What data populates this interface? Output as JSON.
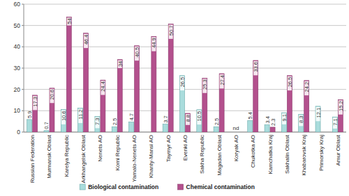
{
  "chart_data": {
    "type": "bar",
    "categories": [
      "Russian Federation",
      "Murmansk Oblast",
      "Karelya Republic",
      "Arkhangelsk Oblast",
      "Nenets AO",
      "Komi Republic",
      "Yamalo-Nenets AO",
      "Khanty-Mansi AO",
      "Taymyr AO",
      "Evenki AO",
      "Sakha Republic",
      "Magadan Oblast",
      "Koryak AO",
      "Chukotka AO",
      "Kamchatka Kraj",
      "Sakhalin Oblast",
      "Khabarovsk Kraj",
      "Primorsky Kraj",
      "Amur Oblast"
    ],
    "series": [
      {
        "name": "Biological contamination",
        "color": "#a9dcdc",
        "values": [
          5.9,
          0.7,
          10.6,
          11.2,
          7.3,
          2.5,
          4.7,
          null,
          3.7,
          26.5,
          10.5,
          2.5,
          null,
          5.4,
          3.4,
          9.1,
          8.3,
          12.1,
          7.1
        ]
      },
      {
        "name": "Chemical contamination",
        "color": "#b3508d",
        "values": [
          17.3,
          20.6,
          54,
          46.4,
          24.4,
          34,
          40.5,
          44.9,
          50.7,
          8.8,
          25.3,
          27.4,
          null,
          33.6,
          2.3,
          26.5,
          24.2,
          null,
          15.2
        ]
      }
    ],
    "annotations": [
      {
        "text": "nd",
        "category": "Koryak AO"
      }
    ],
    "ylim": [
      0,
      60
    ],
    "yticks": [
      0,
      10,
      20,
      30,
      40,
      50,
      60
    ],
    "grid": true,
    "data_labels": true,
    "legend": "bottom"
  }
}
